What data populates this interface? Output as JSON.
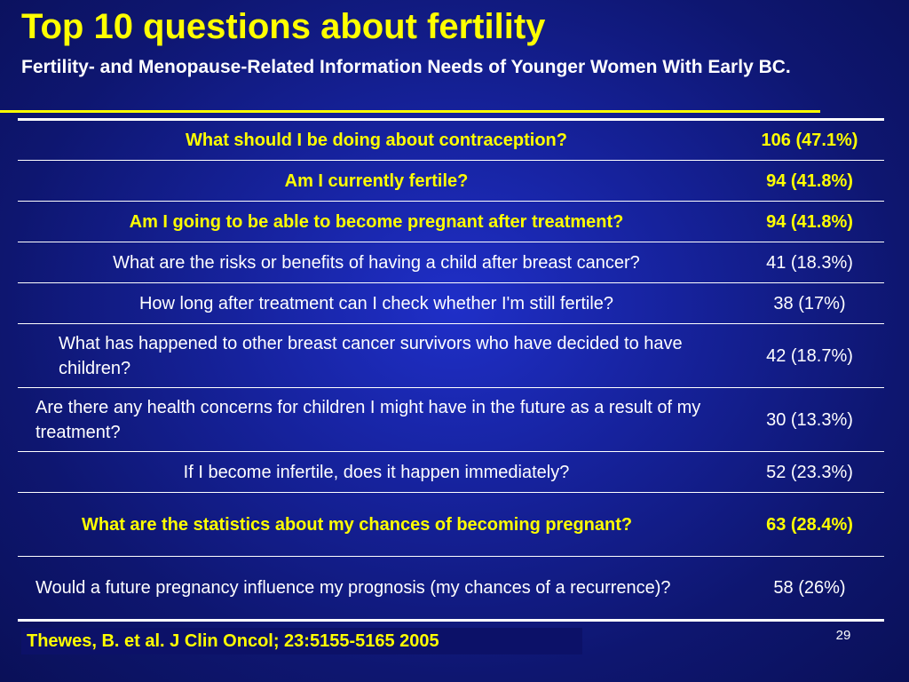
{
  "slide": {
    "title": "Top 10 questions about fertility",
    "subtitle": "Fertility- and Menopause-Related Information Needs of Younger Women With Early BC.",
    "citation": "Thewes, B. et al. J Clin Oncol; 23:5155-5165 2005",
    "page_number": "29"
  },
  "colors": {
    "background": "#16229c",
    "title": "#ffff00",
    "highlight": "#ffff00",
    "text": "#ffffff"
  },
  "table": {
    "rows": [
      {
        "question": "What should I be doing about contraception?",
        "value": "106 (47.1%)"
      },
      {
        "question": "Am I currently fertile?",
        "value": "94 (41.8%)"
      },
      {
        "question": "Am I going to be able to become pregnant after treatment?",
        "value": "94 (41.8%)"
      },
      {
        "question": "What are the risks or benefits of having a child after breast cancer?",
        "value": "41 (18.3%)"
      },
      {
        "question": "How long after treatment can I check whether I'm still fertile?",
        "value": "38 (17%)"
      },
      {
        "question": "What has happened to other breast cancer survivors who have decided to have children?",
        "value": "42 (18.7%)"
      },
      {
        "question": "Are there any health concerns for children I might have in the future as a result of my treatment?",
        "value": "30 (13.3%)"
      },
      {
        "question": "If I become infertile, does it happen immediately?",
        "value": "52 (23.3%)"
      },
      {
        "question": "What are the statistics about my chances of becoming pregnant?",
        "value": "63 (28.4%)"
      },
      {
        "question": "Would a future pregnancy influence my prognosis (my chances of a recurrence)?",
        "value": "58 (26%)"
      }
    ]
  }
}
